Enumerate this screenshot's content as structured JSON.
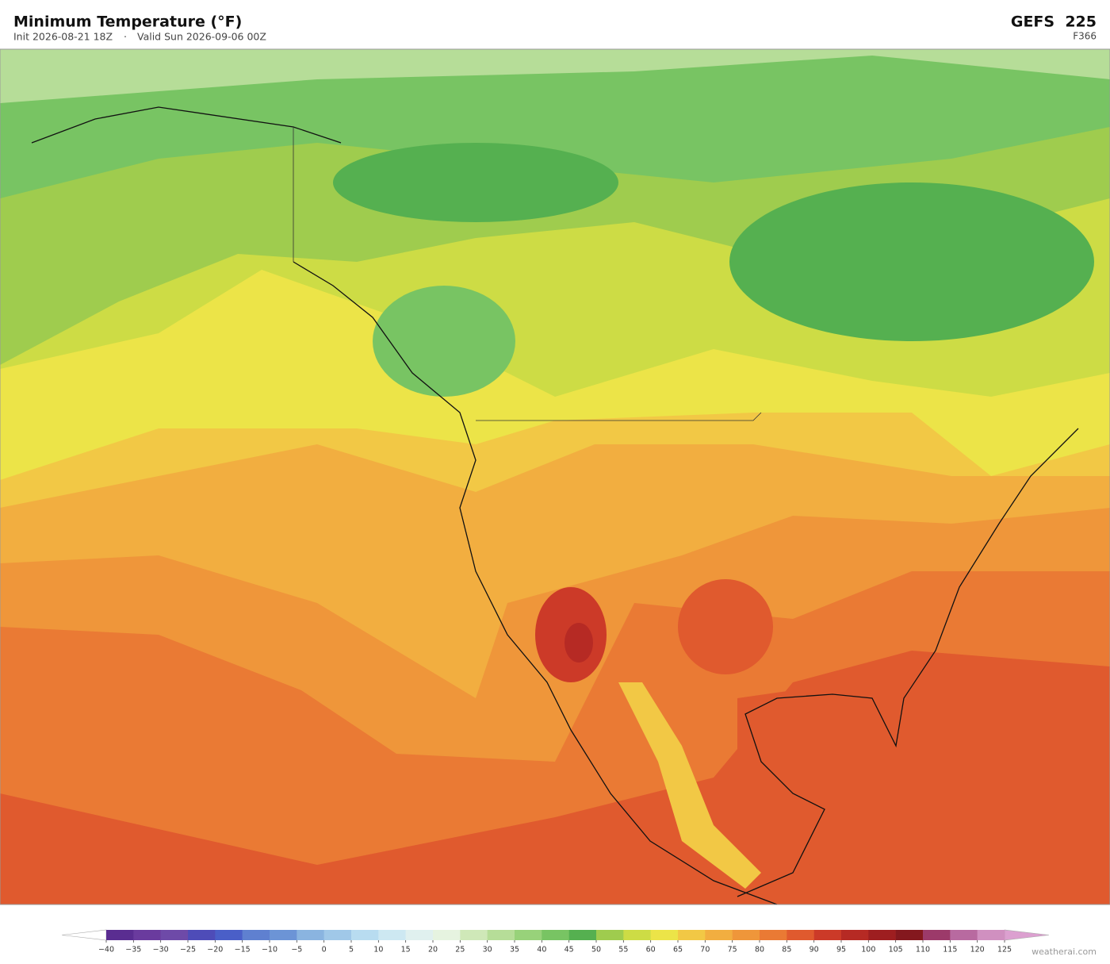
{
  "header": {
    "title": "Minimum Temperature  (°F)",
    "init": "Init 2026-08-21 18Z",
    "separator": "·",
    "valid": "Valid Sun 2026-09-06 00Z",
    "model": "GEFS  225",
    "forecast_hour": "F366"
  },
  "colorbar": {
    "ticks": [
      {
        "value": -40,
        "label": "−40"
      },
      {
        "value": -35,
        "label": "−35"
      },
      {
        "value": -30,
        "label": "−30"
      },
      {
        "value": -25,
        "label": "−25"
      },
      {
        "value": -20,
        "label": "−20"
      },
      {
        "value": -15,
        "label": "−15"
      },
      {
        "value": -10,
        "label": "−10"
      },
      {
        "value": -5,
        "label": "−5"
      },
      0,
      5,
      10,
      15,
      20,
      25,
      30,
      35,
      40,
      45,
      50,
      55,
      60,
      65,
      70,
      75,
      80,
      85,
      90,
      95,
      100,
      105,
      110,
      115,
      120,
      125
    ],
    "colors": [
      "#5a2d91",
      "#6a3b9e",
      "#6e4aa8",
      "#4e4cb8",
      "#4a5fc8",
      "#5f80d0",
      "#6c94d6",
      "#8ab4e0",
      "#a0c8e8",
      "#b8dcf0",
      "#cde8f2",
      "#e0f0ef",
      "#e6f3e0",
      "#cfe8b8",
      "#b6dd98",
      "#98d27a",
      "#78c463",
      "#55b050",
      "#9fcc4e",
      "#cddc45",
      "#ece448",
      "#f2c845",
      "#f2ae40",
      "#ef963a",
      "#ea7a34",
      "#e05a2e",
      "#cc3a28",
      "#b62a24",
      "#9e1e20",
      "#84181e",
      "#9c3a6a",
      "#b86aa0",
      "#d090c0"
    ],
    "extend_colors": [
      "#ffffff",
      "#dca0d0"
    ]
  },
  "watermark": "weatherai.com"
}
